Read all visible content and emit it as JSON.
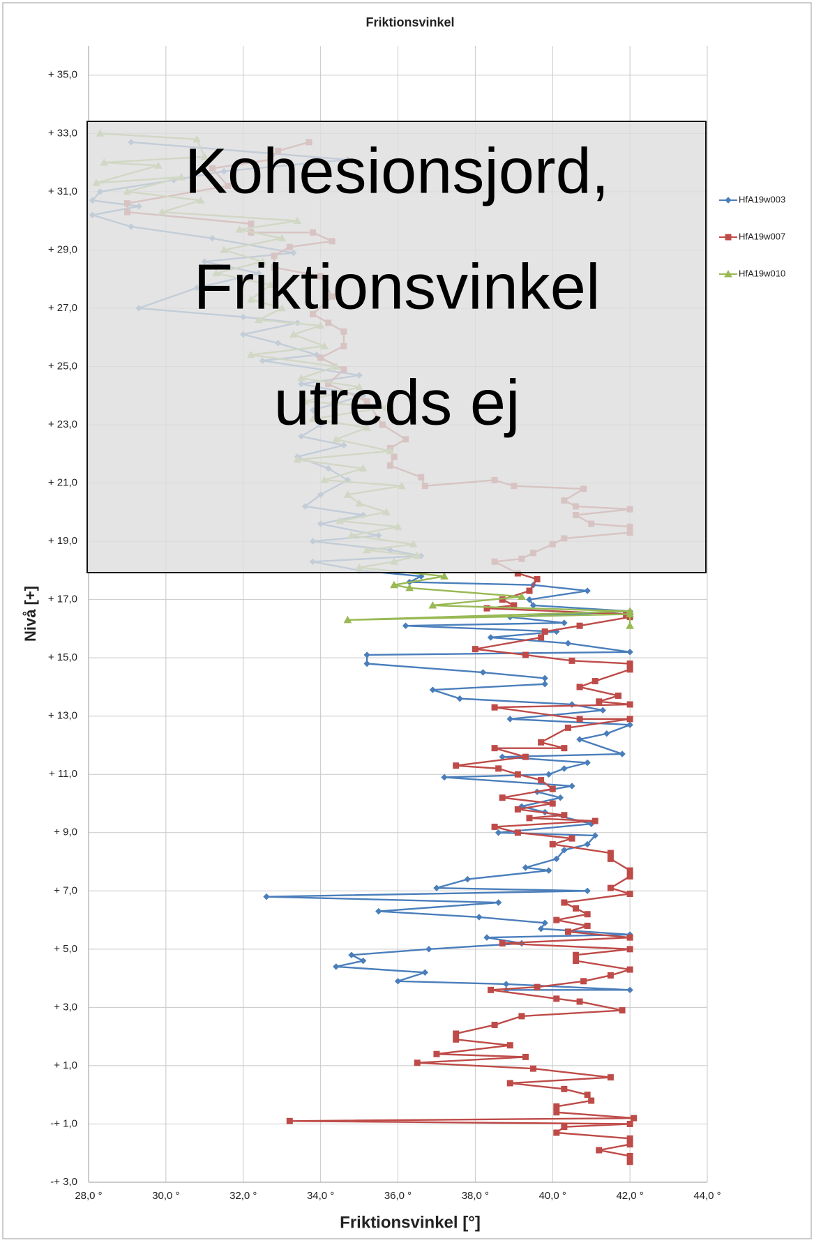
{
  "chart_data": {
    "type": "line",
    "title": "Friktionsvinkel",
    "x_label": "Friktionsvinkel [°]",
    "y_label": "Nivå [+]",
    "annotation": [
      "Kohesionsjord,",
      "Friktionsvinkel",
      "utreds ej"
    ],
    "grid": true,
    "legend": "right",
    "xlim": [
      28,
      44
    ],
    "ylim": [
      -3,
      36
    ],
    "xticks": [
      {
        "value": 28,
        "label": "28,0 °"
      },
      {
        "value": 30,
        "label": "30,0 °"
      },
      {
        "value": 32,
        "label": "32,0 °"
      },
      {
        "value": 34,
        "label": "34,0 °"
      },
      {
        "value": 36,
        "label": "36,0 °"
      },
      {
        "value": 38,
        "label": "38,0 °"
      },
      {
        "value": 40,
        "label": "40,0 °"
      },
      {
        "value": 42,
        "label": "42,0 °"
      },
      {
        "value": 44,
        "label": "44,0 °"
      }
    ],
    "yticks": [
      {
        "value": -3,
        "label": "-+ 3,0"
      },
      {
        "value": -1,
        "label": "-+ 1,0"
      },
      {
        "value": 1,
        "label": "+ 1,0"
      },
      {
        "value": 3,
        "label": "+ 3,0"
      },
      {
        "value": 5,
        "label": "+ 5,0"
      },
      {
        "value": 7,
        "label": "+ 7,0"
      },
      {
        "value": 9,
        "label": "+ 9,0"
      },
      {
        "value": 11,
        "label": "+ 11,0"
      },
      {
        "value": 13,
        "label": "+ 13,0"
      },
      {
        "value": 15,
        "label": "+ 15,0"
      },
      {
        "value": 17,
        "label": "+ 17,0"
      },
      {
        "value": 19,
        "label": "+ 19,0"
      },
      {
        "value": 21,
        "label": "+ 21,0"
      },
      {
        "value": 23,
        "label": "+ 23,0"
      },
      {
        "value": 25,
        "label": "+ 25,0"
      },
      {
        "value": 27,
        "label": "+ 27,0"
      },
      {
        "value": 29,
        "label": "+ 29,0"
      },
      {
        "value": 31,
        "label": "+ 31,0"
      },
      {
        "value": 33,
        "label": "+ 33,0"
      },
      {
        "value": 35,
        "label": "+ 35,0"
      }
    ],
    "series": [
      {
        "name": "HfA19w003",
        "color": "#4a7ebb",
        "marker": "diamond",
        "x": [
          29.1,
          34.7,
          31.5,
          30.2,
          28.3,
          28.1,
          29.3,
          28.1,
          29.1,
          31.2,
          33.3,
          31.0,
          32.4,
          30.8,
          29.3,
          32.0,
          33.4,
          32.0,
          32.9,
          33.9,
          32.5,
          35.0,
          33.5,
          35.1,
          33.8,
          34.0,
          33.5,
          34.6,
          33.4,
          34.2,
          34.7,
          34.0,
          33.6,
          35.1,
          34.0,
          35.5,
          33.8,
          35.8,
          36.6,
          33.8,
          35.0,
          36.6,
          36.3,
          39.5,
          40.9,
          39.4,
          39.5,
          42.0,
          38.9,
          40.3,
          36.2,
          40.1,
          38.4,
          40.4,
          42.0,
          35.2,
          35.2,
          38.2,
          39.8,
          39.8,
          36.9,
          37.6,
          40.5,
          41.3,
          38.9,
          42.0,
          41.4,
          40.7,
          41.8,
          38.7,
          40.9,
          40.3,
          39.9,
          37.2,
          40.5,
          39.6,
          40.2,
          39.2,
          39.8,
          41.0,
          38.6,
          41.1,
          40.9,
          40.3,
          40.1,
          39.3,
          39.9,
          37.8,
          37.0,
          40.9,
          32.6,
          38.6,
          35.5,
          38.1,
          39.8,
          39.7,
          42.0,
          38.3,
          39.2,
          36.8,
          34.8,
          35.1,
          34.4,
          36.7,
          36.0,
          38.8,
          42.0,
          38.8
        ],
        "y": [
          32.7,
          32.1,
          31.7,
          31.4,
          31.0,
          30.7,
          30.5,
          30.2,
          29.8,
          29.4,
          28.9,
          28.6,
          28.2,
          27.7,
          27.0,
          26.7,
          26.5,
          26.1,
          25.8,
          25.4,
          25.2,
          24.7,
          24.4,
          24.0,
          23.5,
          23.0,
          22.6,
          22.3,
          21.9,
          21.5,
          21.1,
          20.6,
          20.2,
          19.9,
          19.6,
          19.2,
          19.0,
          18.7,
          18.5,
          18.3,
          18.0,
          17.8,
          17.6,
          17.5,
          17.3,
          17.0,
          16.8,
          16.6,
          16.4,
          16.2,
          16.1,
          15.9,
          15.7,
          15.5,
          15.2,
          15.1,
          14.8,
          14.5,
          14.3,
          14.1,
          13.9,
          13.6,
          13.4,
          13.2,
          12.9,
          12.7,
          12.4,
          12.2,
          11.7,
          11.6,
          11.4,
          11.2,
          11.0,
          10.9,
          10.6,
          10.4,
          10.2,
          9.9,
          9.7,
          9.3,
          9.0,
          8.9,
          8.6,
          8.4,
          8.1,
          7.8,
          7.7,
          7.4,
          7.1,
          7.0,
          6.8,
          6.6,
          6.3,
          6.1,
          5.9,
          5.7,
          5.5,
          5.4,
          5.2,
          5.0,
          4.8,
          4.6,
          4.4,
          4.2,
          3.9,
          3.8,
          3.6,
          3.6
        ]
      },
      {
        "name": "HfA19w007",
        "color": "#be4b48",
        "marker": "square",
        "x": [
          33.7,
          32.9,
          32.7,
          31.2,
          31.6,
          29.0,
          29.0,
          32.2,
          32.2,
          33.8,
          34.3,
          33.2,
          32.8,
          32.8,
          34.0,
          34.3,
          33.8,
          34.2,
          34.6,
          34.6,
          34.0,
          34.6,
          34.2,
          35.2,
          35.6,
          36.2,
          35.8,
          35.9,
          35.8,
          36.6,
          36.7,
          38.5,
          39.0,
          40.8,
          40.3,
          40.6,
          42.0,
          40.6,
          41.0,
          42.0,
          42.0,
          40.3,
          40.0,
          39.5,
          39.2,
          38.5,
          39.1,
          39.6,
          39.4,
          38.7,
          39.0,
          38.3,
          41.9,
          42.0,
          40.7,
          39.8,
          39.7,
          38.0,
          39.3,
          40.5,
          42.0,
          42.0,
          41.1,
          40.7,
          41.7,
          41.2,
          42.0,
          38.5,
          40.7,
          42.0,
          40.4,
          39.7,
          40.3,
          38.5,
          39.3,
          37.5,
          38.6,
          39.1,
          39.7,
          40.0,
          38.7,
          40.0,
          39.1,
          40.3,
          39.4,
          41.1,
          38.5,
          39.1,
          40.5,
          40.0,
          41.5,
          41.5,
          42.0,
          42.0,
          41.5,
          42.0,
          40.3,
          40.6,
          40.9,
          40.1,
          40.9,
          40.4,
          42.0,
          38.7,
          42.0,
          40.6,
          40.6,
          42.0,
          41.5,
          40.8,
          39.6,
          38.4,
          40.1,
          40.7,
          41.8,
          39.2,
          38.5,
          37.5,
          37.5,
          38.9,
          37.0,
          39.3,
          36.5,
          39.5,
          41.5,
          38.9,
          40.3,
          40.9,
          41.0,
          40.1,
          40.1,
          42.1,
          33.2,
          42.0,
          40.3,
          40.1,
          42.0,
          42.0,
          41.2,
          42.0,
          42.0
        ],
        "y": [
          32.7,
          32.4,
          32.1,
          31.8,
          31.2,
          30.6,
          30.3,
          29.9,
          29.6,
          29.6,
          29.3,
          29.1,
          28.8,
          28.4,
          28.1,
          27.4,
          26.8,
          26.5,
          26.2,
          25.7,
          25.3,
          24.9,
          24.4,
          23.8,
          23.0,
          22.5,
          22.2,
          21.9,
          21.6,
          21.2,
          20.9,
          21.1,
          20.9,
          20.8,
          20.4,
          20.2,
          20.1,
          19.9,
          19.6,
          19.5,
          19.3,
          19.1,
          18.9,
          18.6,
          18.4,
          18.3,
          17.9,
          17.7,
          17.3,
          17.0,
          16.8,
          16.7,
          16.5,
          16.4,
          16.1,
          15.9,
          15.7,
          15.3,
          15.1,
          14.9,
          14.8,
          14.6,
          14.2,
          14.0,
          13.7,
          13.5,
          13.4,
          13.3,
          12.9,
          12.9,
          12.6,
          12.1,
          11.9,
          11.9,
          11.6,
          11.3,
          11.2,
          11.0,
          10.8,
          10.5,
          10.2,
          10.0,
          9.8,
          9.6,
          9.5,
          9.4,
          9.2,
          9.0,
          8.8,
          8.6,
          8.3,
          8.1,
          7.7,
          7.5,
          7.1,
          6.9,
          6.6,
          6.4,
          6.2,
          6.0,
          5.8,
          5.6,
          5.4,
          5.2,
          5.0,
          4.8,
          4.6,
          4.3,
          4.1,
          3.9,
          3.7,
          3.6,
          3.3,
          3.2,
          2.9,
          2.7,
          2.4,
          2.1,
          1.9,
          1.7,
          1.4,
          1.3,
          1.1,
          0.9,
          0.6,
          0.4,
          0.2,
          0.0,
          -0.2,
          -0.4,
          -0.6,
          -0.8,
          -0.9,
          -1.0,
          -1.1,
          -1.3,
          -1.5,
          -1.7,
          -1.9,
          -2.1,
          -2.3
        ]
      },
      {
        "name": "HfA19w010",
        "color": "#98b954",
        "marker": "triangle",
        "x": [
          28.3,
          30.8,
          31.0,
          28.4,
          29.8,
          28.2,
          30.4,
          29.0,
          30.9,
          29.9,
          33.4,
          31.9,
          33.0,
          31.5,
          32.5,
          31.3,
          32.7,
          32.2,
          33.0,
          32.4,
          34.0,
          33.3,
          34.1,
          32.2,
          34.4,
          33.5,
          35.0,
          33.6,
          35.7,
          33.8,
          35.2,
          34.4,
          35.8,
          33.4,
          35.1,
          34.1,
          36.1,
          34.7,
          35.0,
          35.7,
          34.5,
          36.0,
          34.8,
          36.4,
          35.2,
          36.5,
          35.9,
          35.0,
          37.2,
          35.9,
          36.3,
          39.2,
          36.9,
          42.0,
          34.7,
          42.0,
          42.0
        ],
        "y": [
          33.0,
          32.8,
          32.2,
          32.0,
          31.9,
          31.3,
          31.5,
          31.0,
          30.7,
          30.3,
          30.0,
          29.7,
          29.4,
          29.0,
          28.6,
          28.2,
          27.8,
          27.3,
          27.0,
          26.6,
          26.4,
          26.1,
          25.7,
          25.4,
          25.0,
          24.6,
          24.3,
          23.8,
          23.6,
          23.2,
          22.9,
          22.5,
          22.1,
          21.8,
          21.5,
          21.1,
          20.9,
          20.6,
          20.3,
          20.0,
          19.7,
          19.5,
          19.2,
          18.9,
          18.7,
          18.5,
          18.3,
          18.1,
          17.8,
          17.5,
          17.4,
          17.1,
          16.8,
          16.6,
          16.3,
          16.5,
          16.1
        ]
      }
    ]
  }
}
